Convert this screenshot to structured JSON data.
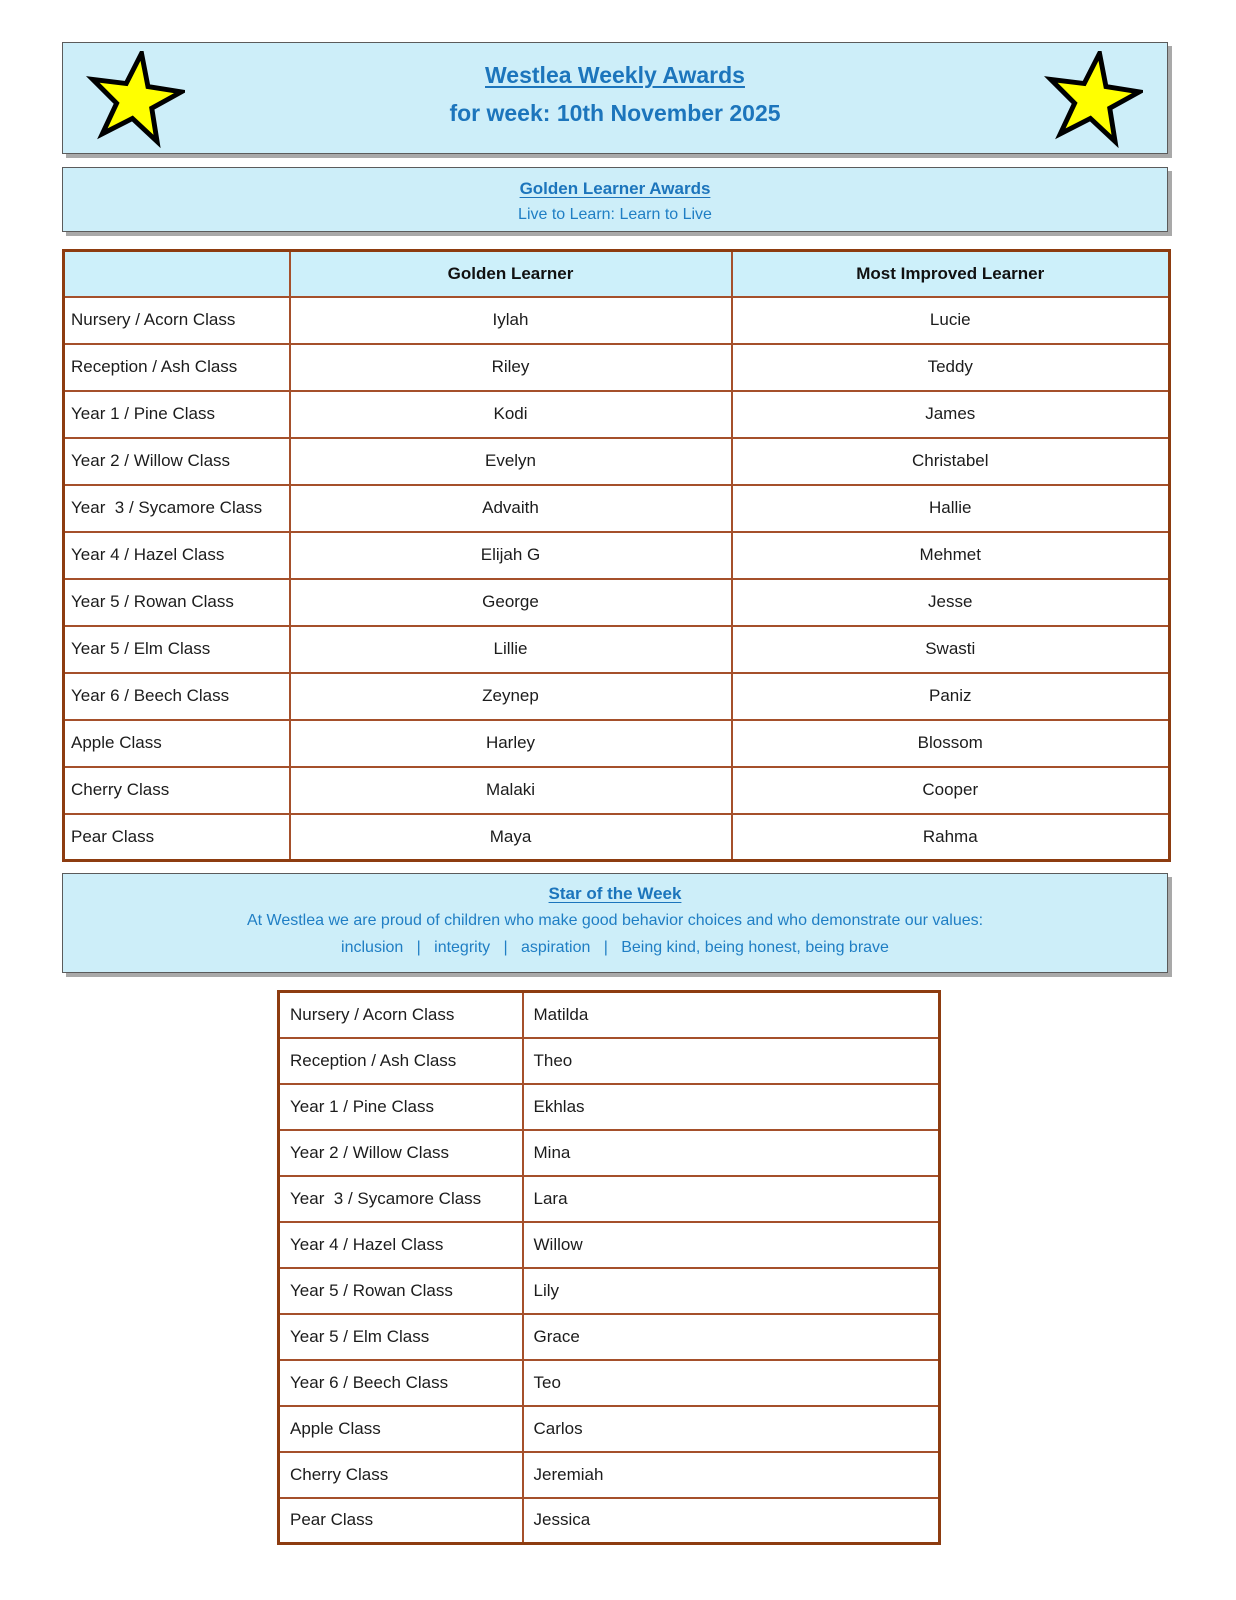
{
  "header": {
    "title": "Westlea Weekly Awards",
    "subtitle": "for week: 10th November 2025"
  },
  "golden_section": {
    "title": "Golden Learner Awards",
    "motto": "Live to Learn: Learn to Live"
  },
  "awards_table": {
    "columns": [
      "",
      "Golden Learner",
      "Most Improved Learner"
    ],
    "rows": [
      {
        "class": "Nursery / Acorn Class",
        "golden": "Iylah",
        "improved": "Lucie"
      },
      {
        "class": "Reception / Ash Class",
        "golden": "Riley",
        "improved": "Teddy"
      },
      {
        "class": "Year 1 / Pine Class",
        "golden": "Kodi",
        "improved": "James"
      },
      {
        "class": "Year 2 / Willow Class",
        "golden": "Evelyn",
        "improved": "Christabel"
      },
      {
        "class": "Year  3 / Sycamore Class",
        "golden": "Advaith",
        "improved": "Hallie"
      },
      {
        "class": "Year 4 / Hazel Class",
        "golden": "Elijah G",
        "improved": "Mehmet"
      },
      {
        "class": "Year 5 / Rowan Class",
        "golden": "George",
        "improved": "Jesse"
      },
      {
        "class": "Year 5 / Elm Class",
        "golden": "Lillie",
        "improved": "Swasti"
      },
      {
        "class": "Year 6 / Beech Class",
        "golden": "Zeynep",
        "improved": "Paniz"
      },
      {
        "class": "Apple Class",
        "golden": "Harley",
        "improved": "Blossom"
      },
      {
        "class": "Cherry Class",
        "golden": "Malaki",
        "improved": "Cooper"
      },
      {
        "class": "Pear Class",
        "golden": "Maya",
        "improved": "Rahma"
      }
    ]
  },
  "star_section": {
    "title": "Star of the Week",
    "description": "At Westlea we are proud of children who make good behavior choices and who demonstrate our values:",
    "values_line": "inclusion   |   integrity   |   aspiration   |   Being kind, being honest, being brave"
  },
  "star_table": {
    "rows": [
      {
        "class": "Nursery / Acorn Class",
        "name": "Matilda"
      },
      {
        "class": "Reception / Ash Class",
        "name": "Theo"
      },
      {
        "class": "Year 1 / Pine Class",
        "name": "Ekhlas"
      },
      {
        "class": "Year 2 / Willow Class",
        "name": "Mina"
      },
      {
        "class": "Year  3 / Sycamore Class",
        "name": "Lara"
      },
      {
        "class": "Year 4 / Hazel Class",
        "name": "Willow"
      },
      {
        "class": "Year 5 / Rowan Class",
        "name": "Lily"
      },
      {
        "class": "Year 5 / Elm Class",
        "name": "Grace"
      },
      {
        "class": "Year 6 / Beech Class",
        "name": "Teo"
      },
      {
        "class": "Apple Class",
        "name": "Carlos"
      },
      {
        "class": "Cherry Class",
        "name": "Jeremiah"
      },
      {
        "class": "Pear Class",
        "name": "Jessica"
      }
    ]
  },
  "icons": {
    "left_star": "star-icon",
    "right_star": "star-icon"
  },
  "colors": {
    "box_background": "#cdeef9",
    "accent_blue": "#1c75bc",
    "table_border": "#a5502b",
    "table_outer_border": "#8d3c10",
    "header_row_background": "#cdf0fa",
    "star_fill": "#ffff00",
    "star_outline": "#000000"
  }
}
